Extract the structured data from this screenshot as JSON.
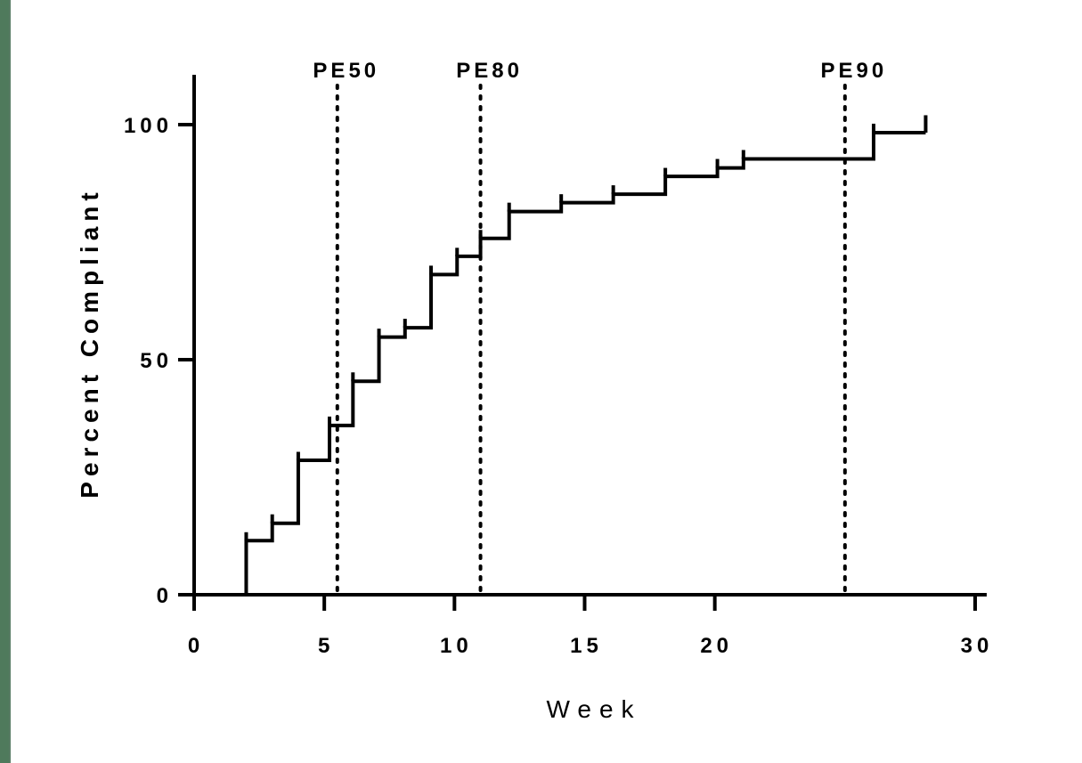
{
  "chart_data": {
    "type": "line",
    "subtype": "step",
    "title": "",
    "xlabel": "Week",
    "ylabel": "Percent Compliant",
    "xlim": [
      0,
      30
    ],
    "ylim": [
      0,
      100
    ],
    "x_ticks": [
      0,
      5,
      10,
      15,
      20,
      30
    ],
    "x_tick_labels": [
      "0",
      "5",
      "10",
      "15",
      "20",
      "30"
    ],
    "y_ticks": [
      0,
      50,
      100
    ],
    "y_tick_labels": [
      "0",
      "50",
      "100"
    ],
    "grid": false,
    "legend": "none",
    "line_color": "#000000",
    "steps": [
      {
        "x": 0,
        "y": 0
      },
      {
        "x": 2,
        "y": 11.5
      },
      {
        "x": 3,
        "y": 15.2
      },
      {
        "x": 4,
        "y": 28.6
      },
      {
        "x": 5.2,
        "y": 36.0
      },
      {
        "x": 6.1,
        "y": 45.4
      },
      {
        "x": 7.1,
        "y": 54.8
      },
      {
        "x": 8.1,
        "y": 56.8
      },
      {
        "x": 9.1,
        "y": 68.1
      },
      {
        "x": 10.1,
        "y": 72.0
      },
      {
        "x": 11.0,
        "y": 75.8
      },
      {
        "x": 12.1,
        "y": 81.5
      },
      {
        "x": 14.1,
        "y": 83.4
      },
      {
        "x": 16.1,
        "y": 85.2
      },
      {
        "x": 18.1,
        "y": 89.0
      },
      {
        "x": 20.1,
        "y": 90.8
      },
      {
        "x": 21.1,
        "y": 92.7
      },
      {
        "x": 26.1,
        "y": 98.3
      }
    ],
    "x_end": 28.1,
    "censor_ticks": [
      {
        "x": 2,
        "y": 13.3
      },
      {
        "x": 3,
        "y": 17.1
      },
      {
        "x": 4,
        "y": 30.4
      },
      {
        "x": 5.2,
        "y": 37.9
      },
      {
        "x": 6.1,
        "y": 47.3
      },
      {
        "x": 7.1,
        "y": 56.6
      },
      {
        "x": 8.1,
        "y": 58.7
      },
      {
        "x": 9.1,
        "y": 70.0
      },
      {
        "x": 10.1,
        "y": 73.8
      },
      {
        "x": 11.0,
        "y": 77.6
      },
      {
        "x": 12.1,
        "y": 83.4
      },
      {
        "x": 14.1,
        "y": 85.2
      },
      {
        "x": 16.1,
        "y": 87.1
      },
      {
        "x": 18.1,
        "y": 90.8
      },
      {
        "x": 20.1,
        "y": 92.7
      },
      {
        "x": 21.1,
        "y": 94.6
      },
      {
        "x": 26.1,
        "y": 100.2
      },
      {
        "x": 28.1,
        "y": 102.0
      }
    ],
    "annotations": [
      {
        "label": "PE50",
        "x": 5.5
      },
      {
        "label": "PE80",
        "x": 11.0
      },
      {
        "label": "PE90",
        "x": 25.0
      }
    ]
  }
}
